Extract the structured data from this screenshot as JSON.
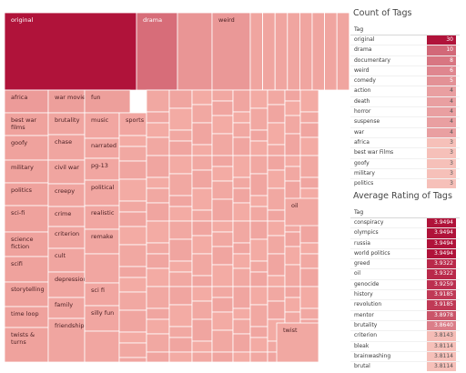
{
  "chart_data": [
    {
      "type": "treemap",
      "labels": [
        "original",
        "drama",
        "weird",
        "africa",
        "war movie",
        "fun",
        "iraq",
        "best war films",
        "goofy",
        "military",
        "politics",
        "sci-fi",
        "science fiction",
        "scifi",
        "storytelling",
        "time loop",
        "twists & turns",
        "brutality",
        "chase",
        "civil war",
        "creepy",
        "crime",
        "criterion",
        "cult",
        "depression",
        "family",
        "friendship",
        "music",
        "sports",
        "narrated",
        "pg-13",
        "political",
        "realistic",
        "remake",
        "sci fi",
        "silly fun",
        "oil",
        "twist"
      ],
      "color_scale": {
        "low": "#f4aea6",
        "high": "#b0133a"
      }
    },
    {
      "type": "table",
      "title": "Count of Tags",
      "column_header": "Tag",
      "rows": [
        {
          "tag": "original",
          "value": 30
        },
        {
          "tag": "drama",
          "value": 10
        },
        {
          "tag": "documentary",
          "value": 8
        },
        {
          "tag": "weird",
          "value": 6
        },
        {
          "tag": "comedy",
          "value": 5
        },
        {
          "tag": "action",
          "value": 4
        },
        {
          "tag": "death",
          "value": 4
        },
        {
          "tag": "horror",
          "value": 4
        },
        {
          "tag": "suspense",
          "value": 4
        },
        {
          "tag": "war",
          "value": 4
        },
        {
          "tag": "africa",
          "value": 3
        },
        {
          "tag": "best war Films",
          "value": 3
        },
        {
          "tag": "goofy",
          "value": 3
        },
        {
          "tag": "military",
          "value": 3
        },
        {
          "tag": "politics",
          "value": 3
        }
      ]
    },
    {
      "type": "table",
      "title": "Average Rating of Tags",
      "column_header": "Tag",
      "rows": [
        {
          "tag": "conspiracy",
          "value": "3.9494"
        },
        {
          "tag": "olympics",
          "value": "3.9494"
        },
        {
          "tag": "russia",
          "value": "3.9494"
        },
        {
          "tag": "world politics",
          "value": "3.9494"
        },
        {
          "tag": "greed",
          "value": "3.9322"
        },
        {
          "tag": "oil",
          "value": "3.9322"
        },
        {
          "tag": "genocide",
          "value": "3.9259"
        },
        {
          "tag": "history",
          "value": "3.9185"
        },
        {
          "tag": "revolution",
          "value": "3.9185"
        },
        {
          "tag": "mentor",
          "value": "3.8978"
        },
        {
          "tag": "brutality",
          "value": "3.8640"
        },
        {
          "tag": "criterion",
          "value": "3.8143"
        },
        {
          "tag": "bleak",
          "value": "3.8114"
        },
        {
          "tag": "brainwashing",
          "value": "3.8114"
        },
        {
          "tag": "brutal",
          "value": "3.8114"
        }
      ]
    }
  ]
}
